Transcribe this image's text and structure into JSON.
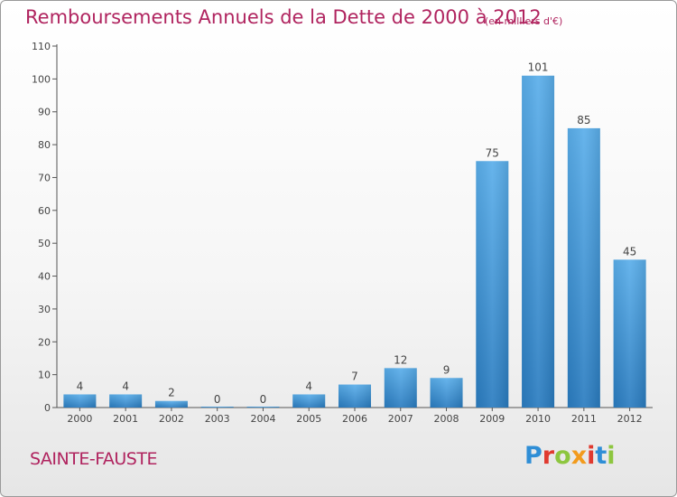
{
  "header": {
    "title": "Remboursements Annuels de la Dette de 2000 à 2012",
    "unit": "(en milliers d'€)"
  },
  "footer": {
    "commune": "SAINTE-FAUSTE",
    "logo_letters": [
      "P",
      "r",
      "o",
      "x",
      "i",
      "t",
      "i"
    ],
    "logo_colors": [
      "#2f8ed6",
      "#e03a2f",
      "#8dc63f",
      "#f29b1d",
      "#e03a2f",
      "#2f8ed6",
      "#8dc63f"
    ]
  },
  "chart_data": {
    "type": "bar",
    "categories": [
      "2000",
      "2001",
      "2002",
      "2003",
      "2004",
      "2005",
      "2006",
      "2007",
      "2008",
      "2009",
      "2010",
      "2011",
      "2012"
    ],
    "values": [
      4,
      4,
      2,
      0,
      0,
      4,
      7,
      12,
      9,
      75,
      101,
      85,
      45
    ],
    "data_labels": [
      "4",
      "4",
      "2",
      "0",
      "0",
      "4",
      "7",
      "12",
      "9",
      "75",
      "101",
      "85",
      "45"
    ],
    "yticks": [
      0,
      10,
      20,
      30,
      40,
      50,
      60,
      70,
      80,
      90,
      100,
      110
    ],
    "ylim": [
      0,
      110
    ],
    "grid": false,
    "colors": {
      "bar_light": "#5aaeea",
      "bar_dark": "#2a7cc0",
      "axis": "#555555",
      "label": "#444444"
    }
  }
}
